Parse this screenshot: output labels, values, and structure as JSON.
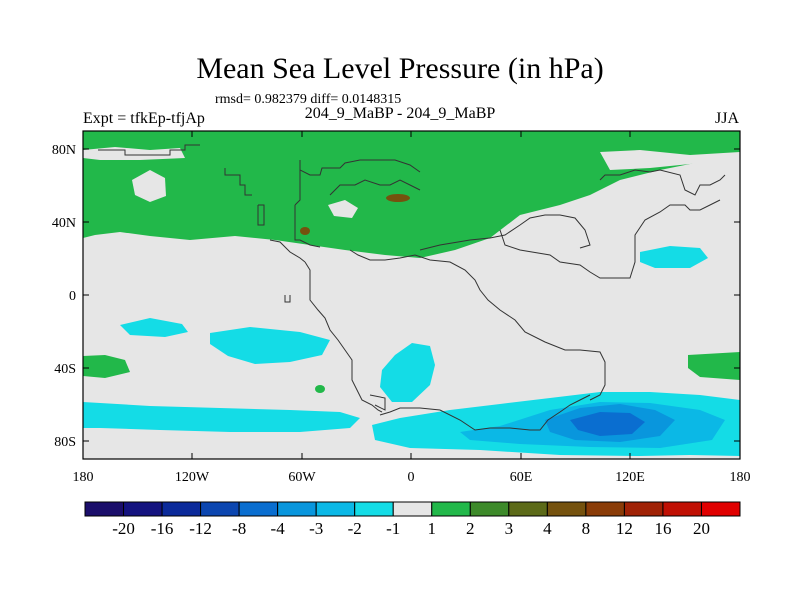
{
  "header": {
    "title": "Mean Sea Level Pressure (in hPa)",
    "stats": "rmsd= 0.982379 diff= 0.0148315",
    "left_label": "Expt = tfkEp-tfjAp",
    "center_label": "204_9_MaBP - 204_9_MaBP",
    "right_label": "JJA"
  },
  "map": {
    "lat_ticks": [
      "80N",
      "40N",
      "0",
      "40S",
      "80S"
    ],
    "lon_ticks": [
      "180",
      "120W",
      "60W",
      "0",
      "60E",
      "120E",
      "180"
    ],
    "background_color": "#e6e6e6"
  },
  "colorbar": {
    "labels": [
      "-20",
      "-16",
      "-12",
      "-8",
      "-4",
      "-3",
      "-2",
      "-1",
      "1",
      "2",
      "3",
      "4",
      "8",
      "12",
      "16",
      "20"
    ],
    "colors": [
      "#1b0e6b",
      "#14137f",
      "#0b2a9a",
      "#0c46b0",
      "#0a6ed0",
      "#0996dd",
      "#0bb8e6",
      "#14dce6",
      "#e6e6e6",
      "#22b84a",
      "#3d8a2a",
      "#5c6a18",
      "#75520e",
      "#8a3c08",
      "#a02206",
      "#c01004",
      "#e00000"
    ]
  }
}
